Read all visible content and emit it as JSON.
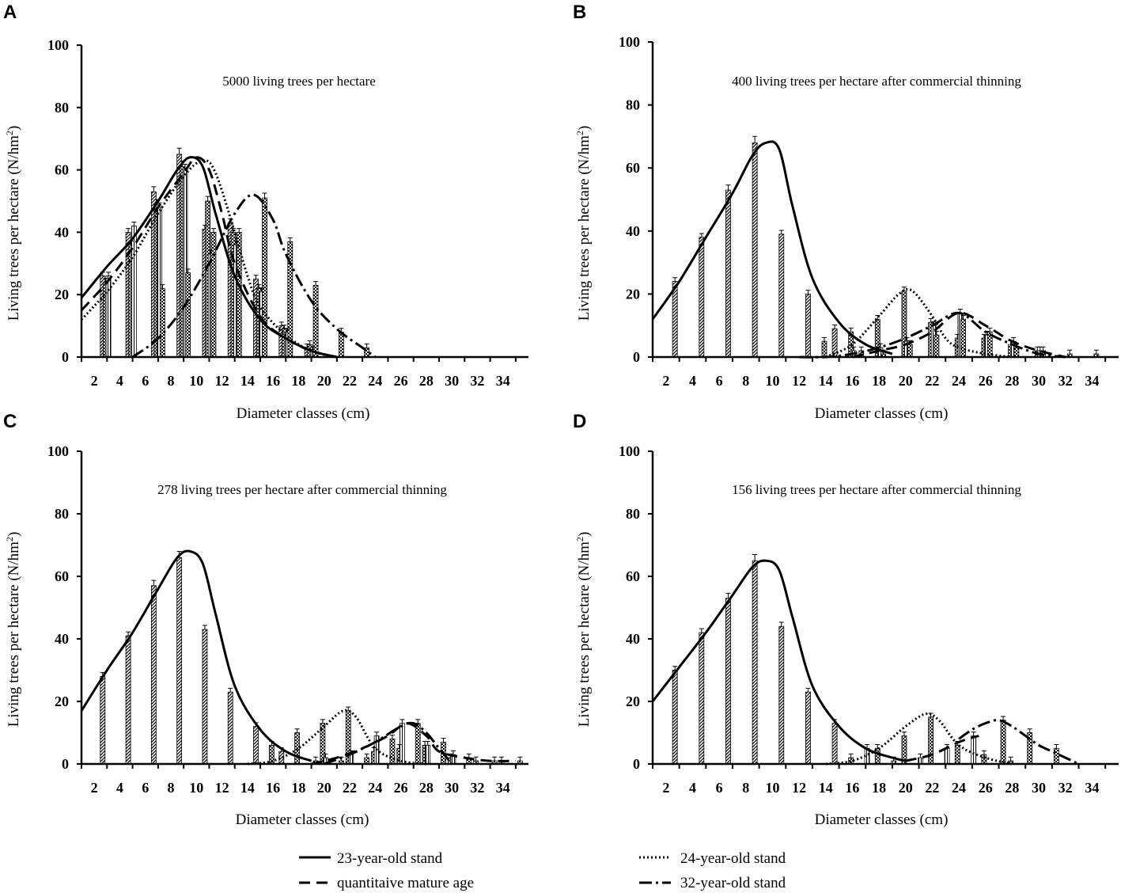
{
  "figure": {
    "legend": [
      {
        "key": "s23",
        "label": "23-year-old stand"
      },
      {
        "key": "s24",
        "label": "24-year-old stand"
      },
      {
        "key": "qma",
        "label": "quantitaive mature age"
      },
      {
        "key": "s32",
        "label": "32-year-old stand"
      }
    ]
  },
  "chart_data": [
    {
      "panel": "A",
      "type": "bar",
      "title": "5000 living trees per hectare",
      "xlabel": "Diameter classes (cm)",
      "ylabel_main": "Living trees per hectare (N/hm",
      "ylabel_sup": "2",
      "ylabel_tail": ")",
      "ylim": [
        0,
        100
      ],
      "yticks": [
        0,
        20,
        40,
        60,
        80,
        100
      ],
      "xticks": [
        "2",
        "4",
        "6",
        "8",
        "10",
        "12",
        "14",
        "16",
        "18",
        "20",
        "22",
        "24",
        "26",
        "28",
        "30",
        "32",
        "34"
      ],
      "xlim": [
        1,
        36
      ],
      "series": [
        {
          "name": "23-year-old stand",
          "x": [
            3,
            5,
            7,
            9,
            11,
            13,
            15,
            17,
            19
          ],
          "values": [
            26,
            40,
            53,
            65,
            41,
            43,
            25,
            10,
            3
          ]
        },
        {
          "name": "24-year-old stand",
          "x": [
            3,
            5,
            7,
            9,
            11,
            13,
            15,
            17,
            19
          ],
          "values": [
            24,
            36,
            49,
            61,
            50,
            40,
            22,
            9,
            4
          ]
        },
        {
          "name": "quantitaive mature age",
          "x": [
            3,
            5,
            7,
            9,
            11,
            13,
            15,
            17,
            19
          ],
          "values": [
            26,
            42,
            48,
            60,
            33,
            36,
            21,
            8,
            2
          ]
        },
        {
          "name": "32-year-old stand",
          "x": [
            7,
            9,
            11,
            13,
            15,
            17,
            19,
            21,
            23
          ],
          "values": [
            22,
            27,
            40,
            40,
            51,
            37,
            23,
            8,
            3
          ]
        }
      ],
      "curves": [
        {
          "name": "23-year-old stand",
          "x": [
            1,
            3,
            5,
            7,
            8.5,
            9.5,
            10.5,
            11.5,
            13,
            15,
            17,
            19,
            21
          ],
          "values": [
            19,
            29,
            38,
            50,
            60,
            64,
            61,
            46,
            26,
            12,
            6,
            2,
            0
          ]
        },
        {
          "name": "24-year-old stand",
          "x": [
            1,
            3,
            5,
            7,
            9,
            10.5,
            11.5,
            13,
            14,
            15,
            17,
            19,
            21
          ],
          "values": [
            12,
            21,
            32,
            46,
            58,
            63,
            59,
            40,
            26,
            16,
            7,
            2,
            0
          ]
        },
        {
          "name": "quantitaive mature age",
          "x": [
            1,
            3,
            5,
            7,
            9,
            10,
            11,
            12,
            13,
            15,
            17,
            19,
            21
          ],
          "values": [
            15,
            24,
            35,
            48,
            59,
            64,
            60,
            46,
            30,
            13,
            6,
            2,
            0
          ]
        },
        {
          "name": "32-year-old stand",
          "x": [
            5,
            7,
            9,
            11,
            13,
            14.5,
            16,
            17,
            19,
            21,
            23,
            24
          ],
          "values": [
            0,
            6,
            16,
            30,
            46,
            52,
            44,
            33,
            18,
            9,
            3,
            0
          ]
        }
      ]
    },
    {
      "panel": "B",
      "type": "bar",
      "title": "400 living trees per hectare after commercial thinning",
      "xlabel": "Diameter classes (cm)",
      "ylabel_main": "Living trees per hectare (N/hm",
      "ylabel_sup": "2",
      "ylabel_tail": ")",
      "ylim": [
        0,
        100
      ],
      "yticks": [
        0,
        20,
        40,
        60,
        80,
        100
      ],
      "xticks": [
        "2",
        "4",
        "6",
        "8",
        "10",
        "12",
        "14",
        "16",
        "18",
        "20",
        "22",
        "24",
        "26",
        "28",
        "30",
        "32",
        "34"
      ],
      "xlim": [
        1,
        36
      ],
      "series": [
        {
          "name": "23-year-old stand",
          "x": [
            3,
            5,
            7,
            9,
            11,
            13,
            15,
            17
          ],
          "values": [
            24,
            38,
            53,
            68,
            39,
            20,
            9,
            2
          ]
        },
        {
          "name": "24-year-old stand",
          "x": [
            14,
            16,
            18,
            20,
            22,
            24,
            26,
            28,
            30
          ],
          "values": [
            5,
            8,
            12,
            21,
            11,
            6,
            6,
            4,
            2
          ]
        },
        {
          "name": "quantitaive mature age",
          "x": [
            16,
            18,
            20,
            22,
            24,
            26,
            28,
            30
          ],
          "values": [
            2,
            3,
            5,
            10,
            14,
            7,
            5,
            2
          ]
        },
        {
          "name": "32-year-old stand",
          "x": [
            18,
            20,
            22,
            24,
            26,
            28,
            30,
            32,
            34
          ],
          "values": [
            1,
            4,
            7,
            12,
            8,
            3,
            2,
            1,
            1
          ]
        }
      ],
      "curves": [
        {
          "name": "23-year-old stand",
          "x": [
            1,
            3,
            5,
            7,
            8.5,
            9.5,
            10.5,
            11.5,
            13,
            15,
            17,
            19
          ],
          "values": [
            12,
            24,
            38,
            52,
            64,
            68,
            66,
            48,
            25,
            11,
            4,
            1
          ]
        },
        {
          "name": "24-year-old stand",
          "x": [
            14,
            16,
            18,
            19.5,
            20.5,
            22,
            23,
            24,
            26,
            28
          ],
          "values": [
            0,
            4,
            13,
            20,
            21,
            13,
            6,
            3,
            1,
            0
          ]
        },
        {
          "name": "quantitaive mature age",
          "x": [
            16,
            18,
            20,
            22,
            24,
            26,
            28,
            30,
            32
          ],
          "values": [
            0,
            2,
            4,
            8,
            14,
            10,
            5,
            2,
            0
          ]
        },
        {
          "name": "32-year-old stand",
          "x": [
            12,
            14,
            16,
            18,
            20,
            22,
            24,
            26,
            28,
            30,
            32
          ],
          "values": [
            0,
            0,
            1,
            3,
            6,
            10,
            14,
            8,
            4,
            1,
            0
          ]
        }
      ]
    },
    {
      "panel": "C",
      "type": "bar",
      "title": "278 living trees per hectare after commercial thinning",
      "xlabel": "Diameter classes (cm)",
      "ylabel_main": "Living trees per hectare (N/hm",
      "ylabel_sup": "2",
      "ylabel_tail": ")",
      "ylim": [
        0,
        100
      ],
      "yticks": [
        0,
        20,
        40,
        60,
        80,
        100
      ],
      "xticks": [
        "2",
        "4",
        "6",
        "8",
        "10",
        "12",
        "14",
        "16",
        "18",
        "20",
        "22",
        "24",
        "26",
        "28",
        "30",
        "32",
        "34"
      ],
      "xlim": [
        1,
        36
      ],
      "series": [
        {
          "name": "23-year-old stand",
          "x": [
            3,
            5,
            7,
            9,
            11,
            13,
            15,
            17
          ],
          "values": [
            28,
            41,
            57,
            66,
            43,
            23,
            12,
            4
          ]
        },
        {
          "name": "24-year-old stand",
          "x": [
            16,
            18,
            20,
            22,
            24,
            26,
            28,
            30,
            32,
            34
          ],
          "values": [
            6,
            10,
            13,
            17,
            4,
            5,
            6,
            2,
            1,
            1
          ]
        },
        {
          "name": "quantitaive mature age",
          "x": [
            20,
            22,
            24,
            26,
            28,
            30
          ],
          "values": [
            2,
            3,
            9,
            13,
            6,
            3
          ]
        },
        {
          "name": "32-year-old stand",
          "x": [
            19,
            21,
            23,
            25,
            27,
            29,
            31,
            33,
            35
          ],
          "values": [
            1,
            1,
            2,
            8,
            13,
            7,
            2,
            1,
            1
          ]
        }
      ],
      "curves": [
        {
          "name": "23-year-old stand",
          "x": [
            1,
            3,
            5,
            7,
            8.5,
            9.5,
            10.5,
            11.5,
            13,
            15,
            17,
            19
          ],
          "values": [
            17,
            30,
            42,
            56,
            66,
            68,
            64,
            48,
            25,
            11,
            4,
            1
          ]
        },
        {
          "name": "24-year-old stand",
          "x": [
            14,
            16,
            18,
            20,
            21.5,
            22.5,
            24,
            26,
            28
          ],
          "values": [
            0,
            1,
            5,
            12,
            17,
            15,
            5,
            1,
            0
          ]
        },
        {
          "name": "quantitaive mature age",
          "x": [
            19,
            21,
            23,
            25,
            26.5,
            28,
            29,
            31,
            33,
            35
          ],
          "values": [
            0,
            2,
            5,
            9,
            13,
            9,
            4,
            2,
            1,
            1
          ]
        },
        {
          "name": "32-year-old stand",
          "x": [
            20,
            22,
            24,
            26,
            27,
            28,
            29,
            30
          ],
          "values": [
            0,
            3,
            7,
            12,
            13,
            10,
            5,
            0
          ]
        }
      ]
    },
    {
      "panel": "D",
      "type": "bar",
      "title": "156 living trees per hectare after commercial thinning",
      "xlabel": "Diameter classes (cm)",
      "ylabel_main": "Living trees per hectare (N/hm",
      "ylabel_sup": "2",
      "ylabel_tail": ")",
      "ylim": [
        0,
        100
      ],
      "yticks": [
        0,
        20,
        40,
        60,
        80,
        100
      ],
      "xticks": [
        "2",
        "4",
        "6",
        "8",
        "10",
        "12",
        "14",
        "16",
        "18",
        "20",
        "22",
        "24",
        "26",
        "28",
        "30",
        "32",
        "34"
      ],
      "xlim": [
        1,
        36
      ],
      "series": [
        {
          "name": "23-year-old stand",
          "x": [
            3,
            5,
            7,
            9,
            11,
            13,
            15
          ],
          "values": [
            30,
            42,
            53,
            65,
            44,
            23,
            13
          ]
        },
        {
          "name": "24-year-old stand",
          "x": [
            16,
            18,
            20,
            22,
            24,
            26,
            28
          ],
          "values": [
            2,
            5,
            9,
            15,
            6,
            3,
            1
          ]
        },
        {
          "name": "quantitaive mature age",
          "x": [
            17,
            19,
            21,
            23,
            25
          ],
          "values": [
            5,
            1,
            2,
            5,
            9
          ]
        },
        {
          "name": "32-year-old stand",
          "x": [
            27,
            29,
            31
          ],
          "values": [
            14,
            10,
            5
          ]
        }
      ],
      "curves": [
        {
          "name": "23-year-old stand",
          "x": [
            1,
            3,
            5,
            7,
            8.5,
            9.5,
            10.5,
            11.5,
            13,
            15,
            17,
            19,
            20
          ],
          "values": [
            20,
            31,
            42,
            54,
            63,
            65,
            62,
            47,
            25,
            12,
            5,
            2,
            1
          ]
        },
        {
          "name": "24-year-old stand",
          "x": [
            14,
            16,
            18,
            20,
            21.5,
            22.5,
            24,
            26,
            28
          ],
          "values": [
            0,
            1,
            5,
            12,
            16,
            14,
            6,
            2,
            0
          ]
        },
        {
          "name": "quantitaive mature age",
          "x": [
            20,
            22,
            24,
            25.5
          ],
          "values": [
            1,
            3,
            7,
            9
          ]
        },
        {
          "name": "32-year-old stand",
          "x": [
            24,
            25,
            26,
            27,
            28,
            29,
            30,
            31,
            32,
            33
          ],
          "values": [
            8,
            11,
            13,
            14,
            12,
            9,
            6,
            4,
            2,
            0
          ]
        }
      ]
    }
  ]
}
